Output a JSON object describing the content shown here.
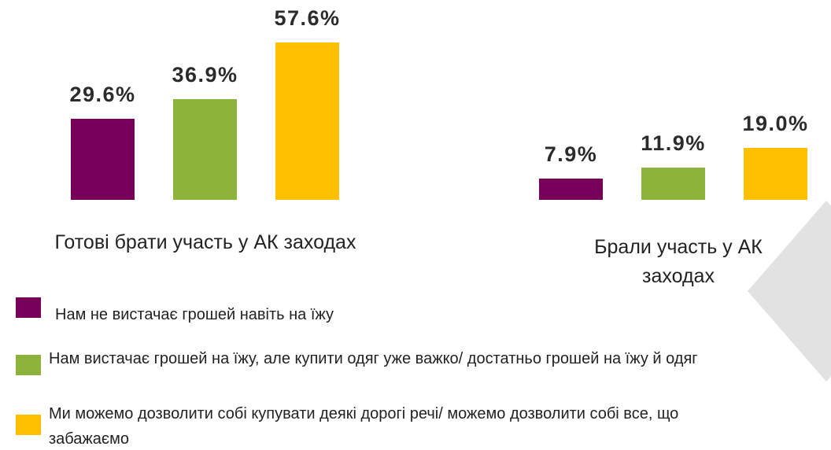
{
  "chart_data": {
    "type": "bar",
    "categories": [
      "Готові брати участь у АК заходах",
      "Брали участь у АК заходах"
    ],
    "series": [
      {
        "name": "Нам не вистачає грошей навіть на їжу",
        "color": "#76005a",
        "values": [
          29.6,
          7.9
        ],
        "value_labels": [
          "29.6%",
          "7.9%"
        ]
      },
      {
        "name": "Нам вистачає грошей на їжу, але купити одяг уже важко/ достатньо грошей на їжу й одяг",
        "color": "#8db33a",
        "values": [
          36.9,
          11.9
        ],
        "value_labels": [
          "36.9%",
          "11.9%"
        ]
      },
      {
        "name": "Ми можемо дозволити собі купувати деякі дорогі речі/ можемо дозволити собі все, що забажаємо",
        "color": "#ffc000",
        "values": [
          57.6,
          19.0
        ],
        "value_labels": [
          "57.6%",
          "19.0%"
        ]
      }
    ]
  }
}
